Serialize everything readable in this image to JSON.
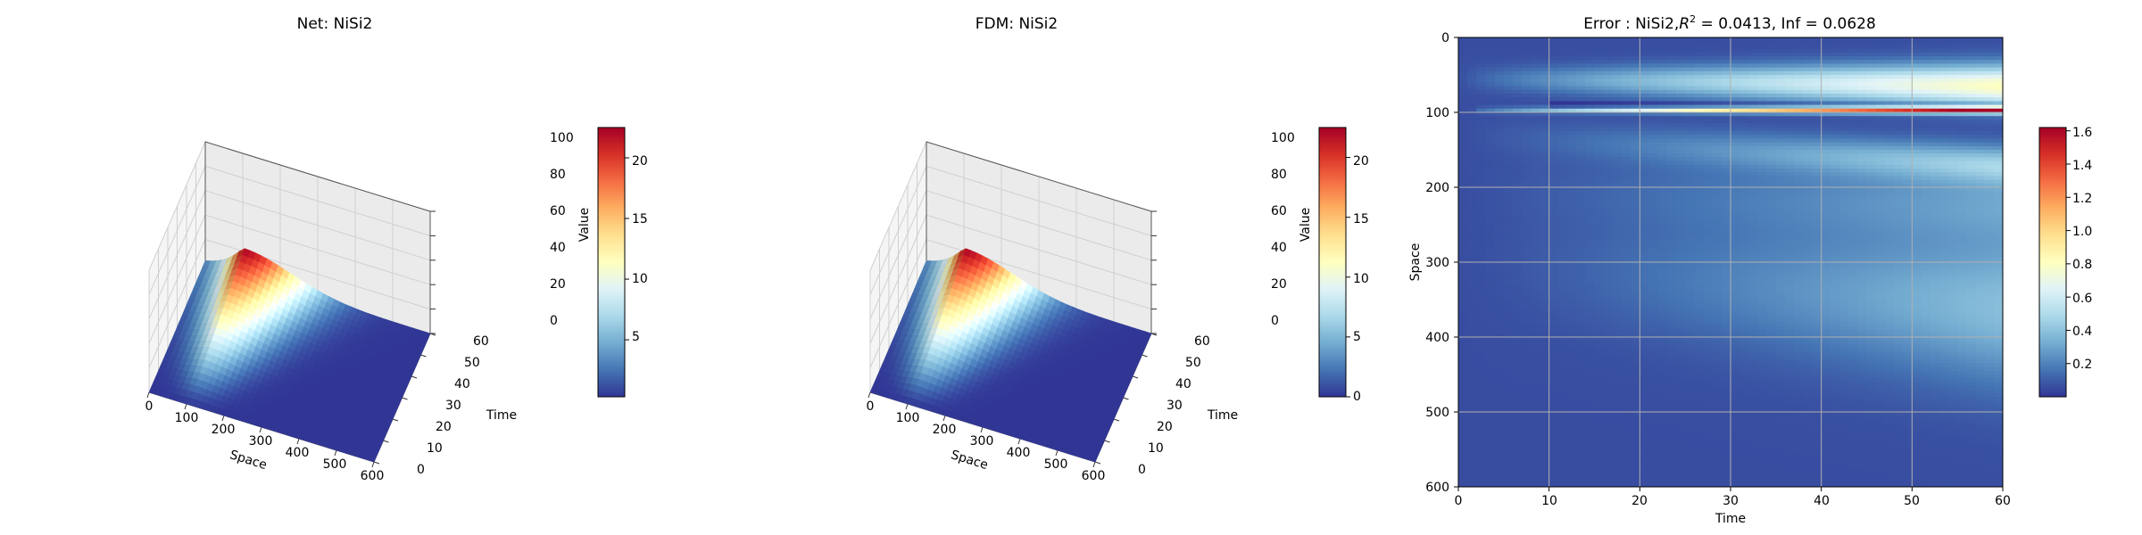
{
  "chart_data": [
    {
      "type": "surface3d",
      "title": "Net: NiSi2",
      "xlabel": "Space",
      "ylabel": "Time",
      "zlabel": "Value",
      "x_ticks": [
        "0",
        "100",
        "200",
        "300",
        "400",
        "500",
        "600"
      ],
      "y_ticks": [
        "0",
        "10",
        "20",
        "30",
        "40",
        "50",
        "60"
      ],
      "z_ticks": [
        "0",
        "20",
        "40",
        "60",
        "80",
        "100"
      ],
      "xlim": [
        0,
        600
      ],
      "ylim": [
        0,
        60
      ],
      "zlim": [
        0,
        100
      ],
      "surface_peak": {
        "space": 100,
        "time": 60,
        "value": 22.5
      },
      "colorbar": {
        "ticks": [
          "5",
          "10",
          "15",
          "20"
        ],
        "range": [
          0.3,
          22.5
        ],
        "colormap": "RdYlBu_r"
      }
    },
    {
      "type": "surface3d",
      "title": "FDM: NiSi2",
      "xlabel": "Space",
      "ylabel": "Time",
      "zlabel": "Value",
      "x_ticks": [
        "0",
        "100",
        "200",
        "300",
        "400",
        "500",
        "600"
      ],
      "y_ticks": [
        "0",
        "10",
        "20",
        "30",
        "40",
        "50",
        "60"
      ],
      "z_ticks": [
        "0",
        "20",
        "40",
        "60",
        "80",
        "100"
      ],
      "xlim": [
        0,
        600
      ],
      "ylim": [
        0,
        60
      ],
      "zlim": [
        0,
        100
      ],
      "surface_peak": {
        "space": 100,
        "time": 60,
        "value": 22.5
      },
      "colorbar": {
        "ticks": [
          "0",
          "5",
          "10",
          "15",
          "20"
        ],
        "range": [
          0,
          22.5
        ],
        "colormap": "RdYlBu_r"
      }
    },
    {
      "type": "heatmap",
      "title_prefix": "Error : NiSi2,",
      "title_r": "R",
      "title_sup": "2",
      "title_suffix": " = 0.0413, Inf = 0.0628",
      "xlabel": "Time",
      "ylabel": "Space",
      "x_ticks": [
        "0",
        "10",
        "20",
        "30",
        "40",
        "50",
        "60"
      ],
      "y_ticks": [
        "0",
        "100",
        "200",
        "300",
        "400",
        "500",
        "600"
      ],
      "xlim": [
        0,
        60
      ],
      "ylim": [
        600,
        0
      ],
      "grid": true,
      "colorbar": {
        "ticks": [
          "0.2",
          "0.4",
          "0.6",
          "0.8",
          "1.0",
          "1.2",
          "1.4",
          "1.6"
        ],
        "range": [
          0,
          1.62
        ],
        "colormap": "RdYlBu_r"
      }
    }
  ]
}
